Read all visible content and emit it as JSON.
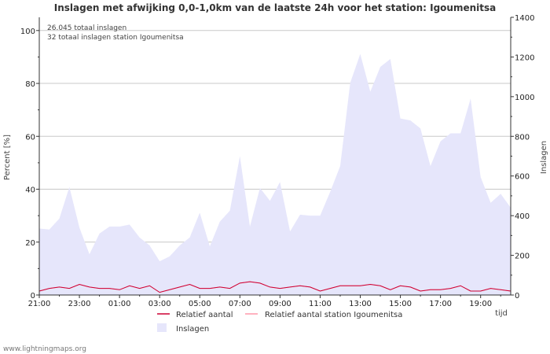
{
  "chart_data": {
    "type": "area",
    "title": "Inslagen met afwijking 0,0-1,0km van de laatste 24h voor het station: Igoumenitsa",
    "xlabel": "tijd",
    "ylabel_left": "Percent   [%]",
    "ylabel_right": "Inslagen",
    "ylim_left": [
      0,
      105
    ],
    "ylim_right": [
      0,
      1400
    ],
    "yticks_left": [
      0,
      20,
      40,
      60,
      80,
      100
    ],
    "yticks_right": [
      0,
      200,
      400,
      600,
      800,
      1000,
      1200,
      1400
    ],
    "x_tick_labels": [
      "21:00",
      "23:00",
      "01:00",
      "03:00",
      "05:00",
      "07:00",
      "09:00",
      "11:00",
      "13:00",
      "15:00",
      "17:00",
      "19:00"
    ],
    "annotations": [
      "26.045 totaal inslagen",
      "32 totaal inslagen station Igoumenitsa"
    ],
    "grid": true,
    "source": "www.lightningmaps.org",
    "series": [
      {
        "name": "Inslagen",
        "axis": "right",
        "color": "#e6e6fb",
        "values": [
          335,
          330,
          385,
          545,
          340,
          205,
          310,
          345,
          345,
          355,
          290,
          250,
          170,
          195,
          250,
          290,
          415,
          245,
          370,
          425,
          700,
          345,
          540,
          475,
          570,
          320,
          405,
          400,
          400,
          520,
          650,
          1070,
          1215,
          1025,
          1150,
          1190,
          890,
          880,
          840,
          650,
          775,
          815,
          815,
          990,
          595,
          465,
          510,
          440
        ]
      },
      {
        "name": "Relatief aantal",
        "axis": "left",
        "color": "#cc0033",
        "values": [
          1.5,
          2.5,
          3,
          2.5,
          4,
          3,
          2.5,
          2.5,
          2,
          3.5,
          2.5,
          3.5,
          1,
          2,
          3,
          4,
          2.5,
          2.5,
          3,
          2.5,
          4.5,
          5,
          4.5,
          3,
          2.5,
          3,
          3.5,
          3,
          1.5,
          2.5,
          3.5,
          3.5,
          3.5,
          4,
          3.5,
          2,
          3.5,
          3,
          1.5,
          2,
          2,
          2.5,
          3.5,
          1.5,
          1.5,
          2.5,
          2,
          1.5
        ]
      },
      {
        "name": "Relatief aantal station Igoumenitsa",
        "axis": "left",
        "color": "#ff99aa",
        "values": [
          1.5,
          2.5,
          3,
          2.5,
          4,
          3,
          2.5,
          2.5,
          2,
          3.5,
          2.5,
          3.5,
          1,
          2,
          3,
          4,
          2.5,
          2.5,
          3,
          2.5,
          4.5,
          5,
          4.5,
          3,
          2.5,
          3,
          3.5,
          3,
          1.5,
          2.5,
          3.5,
          3.5,
          3.5,
          4,
          3.5,
          2,
          3.5,
          3,
          1.5,
          2,
          2,
          2.5,
          3.5,
          1.5,
          1.5,
          2.5,
          2,
          1.5
        ]
      }
    ],
    "legend": [
      "Relatief aantal",
      "Relatief aantal station Igoumenitsa",
      "Inslagen"
    ]
  },
  "colors": {
    "area_fill": "#e6e6fb",
    "line_main": "#cc0033",
    "line_station": "#ff99aa",
    "grid": "#c8c8c8",
    "axis": "#333333"
  }
}
